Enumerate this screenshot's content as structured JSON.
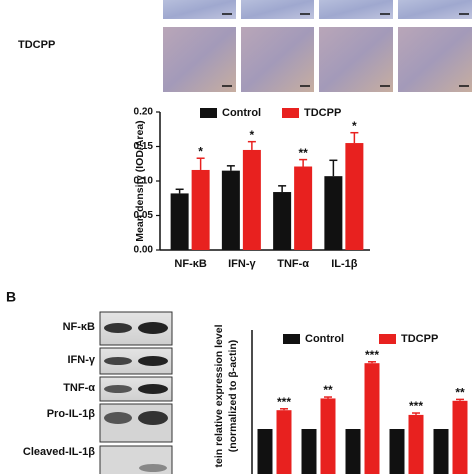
{
  "figure": {
    "row_label": "TDCPP",
    "panel_label": "B",
    "blot_labels": [
      "NF-κB",
      "IFN-γ",
      "TNF-α",
      "Pro-IL-1β",
      "Cleaved-IL-1β"
    ]
  },
  "chart_data": [
    {
      "type": "bar",
      "y_label": "Mean density (IOD/Area)",
      "categories": [
        "NF-κB",
        "IFN-γ",
        "TNF-α",
        "IL-1β"
      ],
      "series": [
        {
          "name": "Control",
          "color": "#111111",
          "values": [
            0.082,
            0.115,
            0.084,
            0.107
          ],
          "error": [
            0.006,
            0.007,
            0.009,
            0.023
          ]
        },
        {
          "name": "TDCPP",
          "color": "#e8211f",
          "values": [
            0.116,
            0.145,
            0.121,
            0.155
          ],
          "error": [
            0.017,
            0.012,
            0.01,
            0.015
          ],
          "significance": [
            "*",
            "*",
            "**",
            "*"
          ]
        }
      ],
      "ylim": [
        0,
        0.2
      ],
      "yticks": [
        {
          "value": 0,
          "label": "0.00"
        },
        {
          "value": 0.05,
          "label": "0.05"
        },
        {
          "value": 0.1,
          "label": "0.10"
        },
        {
          "value": 0.15,
          "label": "0.15"
        },
        {
          "value": 0.2,
          "label": "0.20"
        }
      ]
    },
    {
      "type": "bar",
      "y_label": [
        "tein relative expression level",
        "(normalized to β-actin)"
      ],
      "categories": [
        null,
        null,
        null,
        null,
        null
      ],
      "series": [
        {
          "name": "Control",
          "color": "#111111",
          "values": [
            1,
            1,
            1,
            1,
            1
          ],
          "error": [
            0,
            0,
            0,
            0,
            0
          ]
        },
        {
          "name": "TDCPP",
          "color": "#e8211f",
          "values": [
            1.4,
            1.65,
            2.4,
            1.3,
            1.6
          ],
          "error": [
            0.03,
            0.03,
            0.03,
            0.04,
            0.03
          ],
          "significance": [
            "***",
            "**",
            "***",
            "***",
            "**"
          ]
        }
      ],
      "ylim": [
        0,
        3
      ]
    }
  ]
}
